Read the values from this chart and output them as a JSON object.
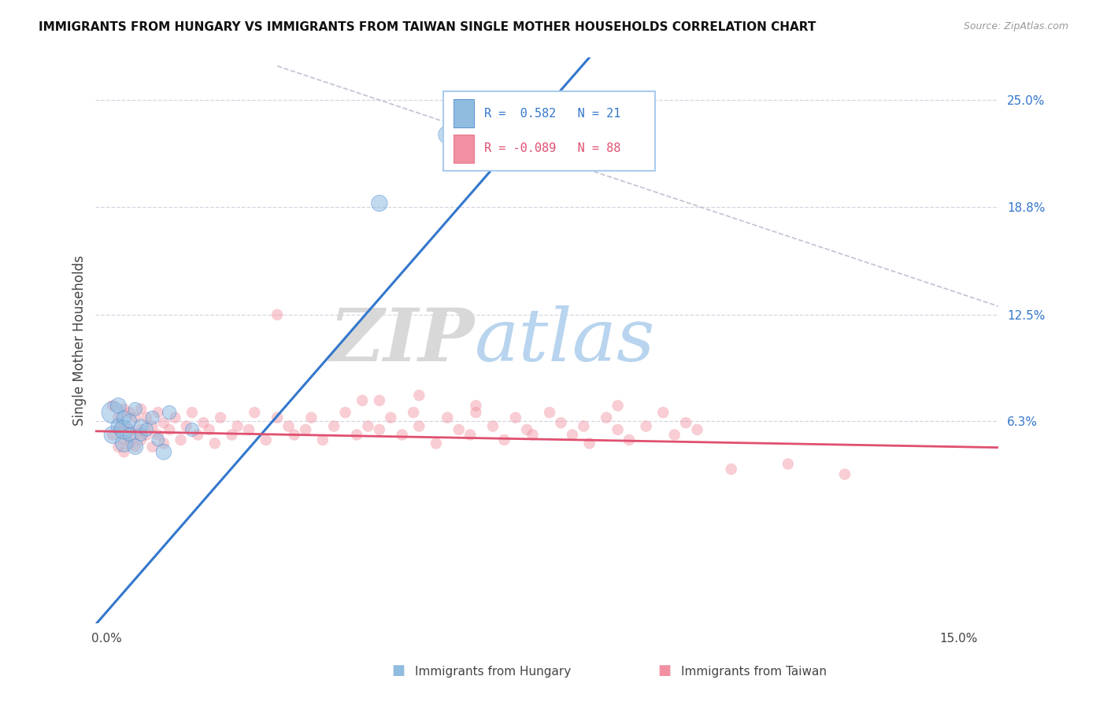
{
  "title": "IMMIGRANTS FROM HUNGARY VS IMMIGRANTS FROM TAIWAN SINGLE MOTHER HOUSEHOLDS CORRELATION CHART",
  "source": "Source: ZipAtlas.com",
  "ylabel": "Single Mother Households",
  "watermark_zip": "ZIP",
  "watermark_atlas": "atlas",
  "hungary_color": "#90bce0",
  "taiwan_color": "#f090a0",
  "hungary_line_color": "#3377cc",
  "taiwan_line_color": "#e05070",
  "ref_line_color": "#bbbbcc",
  "grid_color": "#ccccdd",
  "background_color": "#ffffff",
  "legend_hungary_label": "R =  0.582   N = 21",
  "legend_taiwan_label": "R = -0.089   N = 88",
  "xlim": [
    -0.002,
    0.157
  ],
  "ylim": [
    -0.055,
    0.275
  ],
  "y_ticks": [
    0.063,
    0.125,
    0.188,
    0.25
  ],
  "y_tick_labels": [
    "6.3%",
    "12.5%",
    "18.8%",
    "25.0%"
  ],
  "x_ticks": [
    0.0,
    0.15
  ],
  "x_tick_labels": [
    "0.0%",
    "15.0%"
  ],
  "hungary_points": [
    [
      0.001,
      0.068
    ],
    [
      0.001,
      0.055
    ],
    [
      0.002,
      0.072
    ],
    [
      0.002,
      0.06
    ],
    [
      0.003,
      0.065
    ],
    [
      0.003,
      0.05
    ],
    [
      0.003,
      0.058
    ],
    [
      0.004,
      0.055
    ],
    [
      0.004,
      0.063
    ],
    [
      0.005,
      0.048
    ],
    [
      0.005,
      0.07
    ],
    [
      0.006,
      0.055
    ],
    [
      0.006,
      0.06
    ],
    [
      0.007,
      0.058
    ],
    [
      0.008,
      0.065
    ],
    [
      0.009,
      0.052
    ],
    [
      0.01,
      0.045
    ],
    [
      0.011,
      0.068
    ],
    [
      0.015,
      0.058
    ],
    [
      0.048,
      0.19
    ],
    [
      0.06,
      0.23
    ]
  ],
  "hungary_sizes": [
    400,
    250,
    200,
    180,
    160,
    250,
    300,
    150,
    170,
    200,
    150,
    130,
    160,
    140,
    150,
    130,
    200,
    160,
    150,
    220,
    280
  ],
  "taiwan_points": [
    [
      0.001,
      0.072
    ],
    [
      0.001,
      0.055
    ],
    [
      0.002,
      0.065
    ],
    [
      0.002,
      0.058
    ],
    [
      0.002,
      0.048
    ],
    [
      0.003,
      0.07
    ],
    [
      0.003,
      0.06
    ],
    [
      0.003,
      0.052
    ],
    [
      0.003,
      0.045
    ],
    [
      0.004,
      0.068
    ],
    [
      0.004,
      0.058
    ],
    [
      0.004,
      0.05
    ],
    [
      0.005,
      0.065
    ],
    [
      0.005,
      0.055
    ],
    [
      0.005,
      0.048
    ],
    [
      0.006,
      0.07
    ],
    [
      0.006,
      0.058
    ],
    [
      0.006,
      0.052
    ],
    [
      0.007,
      0.065
    ],
    [
      0.007,
      0.055
    ],
    [
      0.008,
      0.06
    ],
    [
      0.008,
      0.048
    ],
    [
      0.009,
      0.068
    ],
    [
      0.009,
      0.055
    ],
    [
      0.01,
      0.062
    ],
    [
      0.01,
      0.05
    ],
    [
      0.011,
      0.058
    ],
    [
      0.012,
      0.065
    ],
    [
      0.013,
      0.052
    ],
    [
      0.014,
      0.06
    ],
    [
      0.015,
      0.068
    ],
    [
      0.016,
      0.055
    ],
    [
      0.017,
      0.062
    ],
    [
      0.018,
      0.058
    ],
    [
      0.019,
      0.05
    ],
    [
      0.02,
      0.065
    ],
    [
      0.022,
      0.055
    ],
    [
      0.023,
      0.06
    ],
    [
      0.025,
      0.058
    ],
    [
      0.026,
      0.068
    ],
    [
      0.028,
      0.052
    ],
    [
      0.03,
      0.065
    ],
    [
      0.032,
      0.06
    ],
    [
      0.033,
      0.055
    ],
    [
      0.035,
      0.058
    ],
    [
      0.036,
      0.065
    ],
    [
      0.038,
      0.052
    ],
    [
      0.04,
      0.06
    ],
    [
      0.042,
      0.068
    ],
    [
      0.044,
      0.055
    ],
    [
      0.045,
      0.075
    ],
    [
      0.046,
      0.06
    ],
    [
      0.048,
      0.058
    ],
    [
      0.05,
      0.065
    ],
    [
      0.052,
      0.055
    ],
    [
      0.054,
      0.068
    ],
    [
      0.055,
      0.06
    ],
    [
      0.058,
      0.05
    ],
    [
      0.06,
      0.065
    ],
    [
      0.062,
      0.058
    ],
    [
      0.064,
      0.055
    ],
    [
      0.065,
      0.068
    ],
    [
      0.068,
      0.06
    ],
    [
      0.07,
      0.052
    ],
    [
      0.072,
      0.065
    ],
    [
      0.074,
      0.058
    ],
    [
      0.075,
      0.055
    ],
    [
      0.078,
      0.068
    ],
    [
      0.08,
      0.062
    ],
    [
      0.082,
      0.055
    ],
    [
      0.084,
      0.06
    ],
    [
      0.085,
      0.05
    ],
    [
      0.088,
      0.065
    ],
    [
      0.09,
      0.058
    ],
    [
      0.092,
      0.052
    ],
    [
      0.095,
      0.06
    ],
    [
      0.098,
      0.068
    ],
    [
      0.1,
      0.055
    ],
    [
      0.102,
      0.062
    ],
    [
      0.104,
      0.058
    ],
    [
      0.03,
      0.125
    ],
    [
      0.048,
      0.075
    ],
    [
      0.055,
      0.078
    ],
    [
      0.065,
      0.072
    ],
    [
      0.09,
      0.072
    ],
    [
      0.11,
      0.035
    ],
    [
      0.12,
      0.038
    ],
    [
      0.13,
      0.032
    ]
  ],
  "taiwan_sizes_base": 110
}
